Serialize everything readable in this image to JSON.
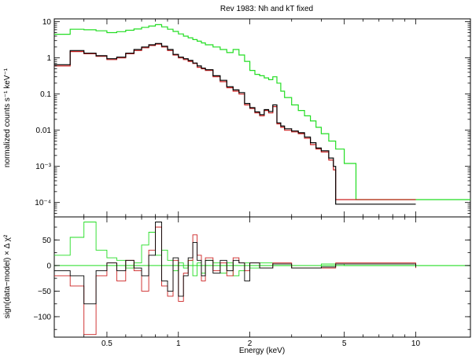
{
  "chart_data": {
    "type": "line",
    "title": "Rev 1983: Nh and kT fixed",
    "xlabel": "Energy (keV)",
    "xscale": "log",
    "xlim": [
      0.3,
      17
    ],
    "x_ticks": [
      "0.5",
      "1",
      "2",
      "5",
      "10"
    ],
    "grid": false,
    "colors": {
      "black": "#000000",
      "red": "#cc2222",
      "green": "#22dd22"
    },
    "panels": [
      {
        "name": "spectrum",
        "ylabel": "normalized counts s⁻¹ keV⁻¹",
        "yscale": "log",
        "ylim": [
          4e-05,
          12
        ],
        "y_ticks": [
          "10",
          "1",
          "0.1",
          "0.01",
          "10⁻³",
          "10⁻⁴"
        ],
        "y_tick_values": [
          10,
          1,
          0.1,
          0.01,
          0.001,
          0.0001
        ],
        "series": [
          {
            "color": "green",
            "x": [
              0.3,
              0.35,
              0.4,
              0.45,
              0.5,
              0.55,
              0.6,
              0.65,
              0.7,
              0.75,
              0.8,
              0.85,
              0.9,
              0.95,
              1.0,
              1.05,
              1.1,
              1.15,
              1.2,
              1.25,
              1.3,
              1.4,
              1.5,
              1.6,
              1.7,
              1.8,
              1.9,
              2.0,
              2.1,
              2.2,
              2.3,
              2.4,
              2.5,
              2.6,
              2.7,
              2.8,
              3.0,
              3.2,
              3.4,
              3.6,
              3.8,
              4.0,
              4.3,
              4.6,
              5.0,
              5.3,
              5.6,
              10.0,
              17.0
            ],
            "y": [
              4.5,
              6.2,
              6.0,
              5.6,
              5.0,
              5.3,
              5.8,
              6.3,
              7.0,
              7.6,
              8.3,
              7.2,
              6.2,
              5.4,
              4.6,
              4.0,
              3.6,
              3.2,
              2.9,
              2.6,
              2.3,
              2.0,
              1.7,
              1.4,
              1.7,
              1.2,
              0.8,
              0.45,
              0.35,
              0.32,
              0.28,
              0.25,
              0.3,
              0.2,
              0.12,
              0.08,
              0.05,
              0.035,
              0.025,
              0.018,
              0.012,
              0.008,
              0.005,
              0.003,
              0.0012,
              0.0012,
              0.00012,
              0.00012,
              0.00012
            ]
          },
          {
            "color": "red",
            "x": [
              0.3,
              0.35,
              0.4,
              0.45,
              0.5,
              0.55,
              0.6,
              0.65,
              0.7,
              0.75,
              0.8,
              0.85,
              0.9,
              0.95,
              1.0,
              1.05,
              1.1,
              1.15,
              1.2,
              1.25,
              1.3,
              1.4,
              1.5,
              1.6,
              1.7,
              1.8,
              1.9,
              2.0,
              2.1,
              2.2,
              2.3,
              2.4,
              2.5,
              2.6,
              2.7,
              2.8,
              3.0,
              3.2,
              3.4,
              3.6,
              3.8,
              4.0,
              4.3,
              4.5,
              4.6,
              10.0
            ],
            "y": [
              0.6,
              1.5,
              1.3,
              1.1,
              0.9,
              1.0,
              1.3,
              1.6,
              1.9,
              2.2,
              2.4,
              2.0,
              1.6,
              1.2,
              1.0,
              0.9,
              0.8,
              0.7,
              0.55,
              0.5,
              0.45,
              0.3,
              0.22,
              0.15,
              0.12,
              0.1,
              0.05,
              0.04,
              0.03,
              0.025,
              0.035,
              0.03,
              0.045,
              0.015,
              0.012,
              0.01,
              0.009,
              0.008,
              0.006,
              0.004,
              0.003,
              0.0025,
              0.0015,
              0.0008,
              0.00012,
              0.00012
            ]
          },
          {
            "color": "black",
            "x": [
              0.3,
              0.35,
              0.4,
              0.45,
              0.5,
              0.55,
              0.6,
              0.65,
              0.7,
              0.75,
              0.8,
              0.85,
              0.9,
              0.95,
              1.0,
              1.05,
              1.1,
              1.15,
              1.2,
              1.25,
              1.3,
              1.4,
              1.5,
              1.6,
              1.7,
              1.8,
              1.9,
              2.0,
              2.1,
              2.2,
              2.3,
              2.4,
              2.5,
              2.6,
              2.7,
              2.8,
              3.0,
              3.2,
              3.4,
              3.6,
              3.8,
              4.0,
              4.3,
              4.5,
              4.6,
              10.0
            ],
            "y": [
              0.65,
              1.6,
              1.35,
              1.15,
              0.95,
              1.05,
              1.35,
              1.7,
              2.0,
              2.3,
              2.5,
              2.1,
              1.7,
              1.25,
              1.05,
              0.95,
              0.85,
              0.72,
              0.6,
              0.52,
              0.47,
              0.32,
              0.24,
              0.16,
              0.13,
              0.11,
              0.055,
              0.042,
              0.032,
              0.027,
              0.037,
              0.033,
              0.05,
              0.016,
              0.013,
              0.011,
              0.0095,
              0.0085,
              0.0065,
              0.0045,
              0.0032,
              0.0027,
              0.0017,
              0.001,
              9e-05,
              9e-05
            ]
          }
        ]
      },
      {
        "name": "residuals",
        "ylabel": "sign(data−model) × Δ χ²",
        "yscale": "linear",
        "ylim": [
          -140,
          95
        ],
        "y_ticks": [
          "50",
          "0",
          "−50",
          "−100"
        ],
        "y_tick_values": [
          50,
          0,
          -50,
          -100
        ],
        "series": [
          {
            "color": "green",
            "x": [
              0.3,
              0.35,
              0.4,
              0.45,
              0.5,
              0.55,
              0.6,
              0.65,
              0.7,
              0.75,
              0.8,
              0.85,
              0.9,
              0.95,
              1.0,
              1.05,
              1.1,
              1.15,
              1.2,
              1.25,
              1.3,
              1.4,
              1.5,
              1.6,
              1.7,
              1.8,
              1.9,
              2.0,
              2.2,
              2.5,
              3.0,
              4.0,
              5.0,
              10.0,
              17.0
            ],
            "y": [
              20,
              55,
              85,
              30,
              15,
              10,
              -5,
              5,
              40,
              65,
              20,
              30,
              10,
              -10,
              5,
              -5,
              10,
              -20,
              5,
              -15,
              10,
              5,
              -15,
              5,
              -20,
              -10,
              5,
              -5,
              5,
              0,
              -5,
              3,
              0,
              0,
              0
            ]
          },
          {
            "color": "red",
            "x": [
              0.3,
              0.35,
              0.4,
              0.45,
              0.5,
              0.55,
              0.6,
              0.65,
              0.7,
              0.75,
              0.8,
              0.85,
              0.9,
              0.95,
              1.0,
              1.05,
              1.1,
              1.15,
              1.2,
              1.25,
              1.3,
              1.4,
              1.5,
              1.6,
              1.7,
              1.8,
              1.9,
              2.0,
              2.2,
              2.5,
              3.0,
              4.0,
              4.6,
              10.0
            ],
            "y": [
              -20,
              -40,
              -135,
              -20,
              5,
              -30,
              10,
              -10,
              -50,
              30,
              75,
              -40,
              -60,
              10,
              -70,
              -15,
              10,
              60,
              20,
              -30,
              15,
              -10,
              5,
              -20,
              15,
              5,
              -10,
              5,
              -5,
              5,
              -5,
              -5,
              5,
              -5
            ]
          },
          {
            "color": "black",
            "x": [
              0.3,
              0.35,
              0.4,
              0.45,
              0.5,
              0.55,
              0.6,
              0.65,
              0.7,
              0.75,
              0.8,
              0.85,
              0.9,
              0.95,
              1.0,
              1.05,
              1.1,
              1.15,
              1.2,
              1.25,
              1.3,
              1.4,
              1.5,
              1.6,
              1.7,
              1.8,
              1.9,
              2.0,
              2.2,
              2.5,
              3.0,
              4.0,
              4.6,
              10.0
            ],
            "y": [
              -10,
              -20,
              -75,
              -10,
              5,
              -10,
              10,
              -5,
              -20,
              20,
              85,
              -30,
              -50,
              15,
              -60,
              -20,
              15,
              45,
              10,
              -20,
              10,
              -15,
              10,
              -10,
              10,
              5,
              -30,
              5,
              -5,
              3,
              -5,
              -3,
              3,
              -3
            ]
          }
        ]
      }
    ]
  }
}
